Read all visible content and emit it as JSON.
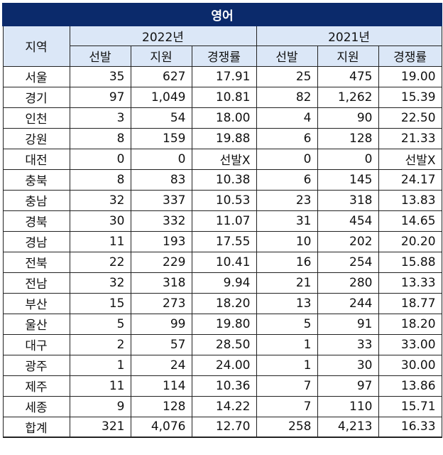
{
  "title": "영어",
  "header": {
    "region": "지역",
    "years": [
      "2022년",
      "2021년"
    ],
    "columns": [
      "선발",
      "지원",
      "경쟁률"
    ]
  },
  "rows": [
    {
      "region": "서울",
      "y2022": [
        "35",
        "627",
        "17.91"
      ],
      "y2021": [
        "25",
        "475",
        "19.00"
      ]
    },
    {
      "region": "경기",
      "y2022": [
        "97",
        "1,049",
        "10.81"
      ],
      "y2021": [
        "82",
        "1,262",
        "15.39"
      ]
    },
    {
      "region": "인천",
      "y2022": [
        "3",
        "54",
        "18.00"
      ],
      "y2021": [
        "4",
        "90",
        "22.50"
      ]
    },
    {
      "region": "강원",
      "y2022": [
        "8",
        "159",
        "19.88"
      ],
      "y2021": [
        "6",
        "128",
        "21.33"
      ]
    },
    {
      "region": "대전",
      "y2022": [
        "0",
        "0",
        "선발X"
      ],
      "y2021": [
        "0",
        "0",
        "선발X"
      ]
    },
    {
      "region": "충북",
      "y2022": [
        "8",
        "83",
        "10.38"
      ],
      "y2021": [
        "6",
        "145",
        "24.17"
      ]
    },
    {
      "region": "충남",
      "y2022": [
        "32",
        "337",
        "10.53"
      ],
      "y2021": [
        "23",
        "318",
        "13.83"
      ]
    },
    {
      "region": "경북",
      "y2022": [
        "30",
        "332",
        "11.07"
      ],
      "y2021": [
        "31",
        "454",
        "14.65"
      ]
    },
    {
      "region": "경남",
      "y2022": [
        "11",
        "193",
        "17.55"
      ],
      "y2021": [
        "10",
        "202",
        "20.20"
      ]
    },
    {
      "region": "전북",
      "y2022": [
        "22",
        "229",
        "10.41"
      ],
      "y2021": [
        "16",
        "254",
        "15.88"
      ]
    },
    {
      "region": "전남",
      "y2022": [
        "32",
        "318",
        "9.94"
      ],
      "y2021": [
        "21",
        "280",
        "13.33"
      ]
    },
    {
      "region": "부산",
      "y2022": [
        "15",
        "273",
        "18.20"
      ],
      "y2021": [
        "13",
        "244",
        "18.77"
      ]
    },
    {
      "region": "울산",
      "y2022": [
        "5",
        "99",
        "19.80"
      ],
      "y2021": [
        "5",
        "91",
        "18.20"
      ]
    },
    {
      "region": "대구",
      "y2022": [
        "2",
        "57",
        "28.50"
      ],
      "y2021": [
        "1",
        "33",
        "33.00"
      ]
    },
    {
      "region": "광주",
      "y2022": [
        "1",
        "24",
        "24.00"
      ],
      "y2021": [
        "1",
        "30",
        "30.00"
      ]
    },
    {
      "region": "제주",
      "y2022": [
        "11",
        "114",
        "10.36"
      ],
      "y2021": [
        "7",
        "97",
        "13.86"
      ]
    },
    {
      "region": "세종",
      "y2022": [
        "9",
        "128",
        "14.22"
      ],
      "y2021": [
        "7",
        "110",
        "15.71"
      ]
    },
    {
      "region": "합계",
      "y2022": [
        "321",
        "4,076",
        "12.70"
      ],
      "y2021": [
        "258",
        "4,213",
        "16.33"
      ]
    }
  ]
}
